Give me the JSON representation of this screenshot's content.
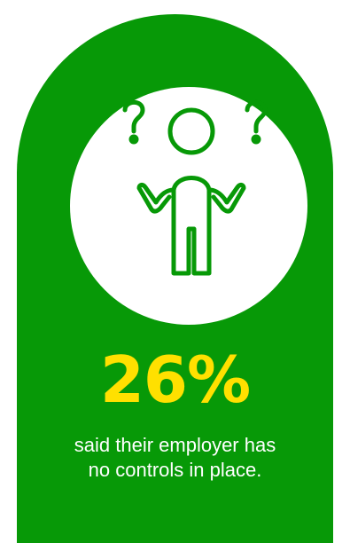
{
  "theme": {
    "card_color": "#079907",
    "stat_color": "#FFE000",
    "icon_color": "#079907"
  },
  "graphic": {
    "icon": "confused-person-icon",
    "question_marks": [
      "?",
      "?"
    ]
  },
  "stat": {
    "value": "26%"
  },
  "caption": {
    "line1": "said their employer has",
    "line2": "no controls in place."
  }
}
